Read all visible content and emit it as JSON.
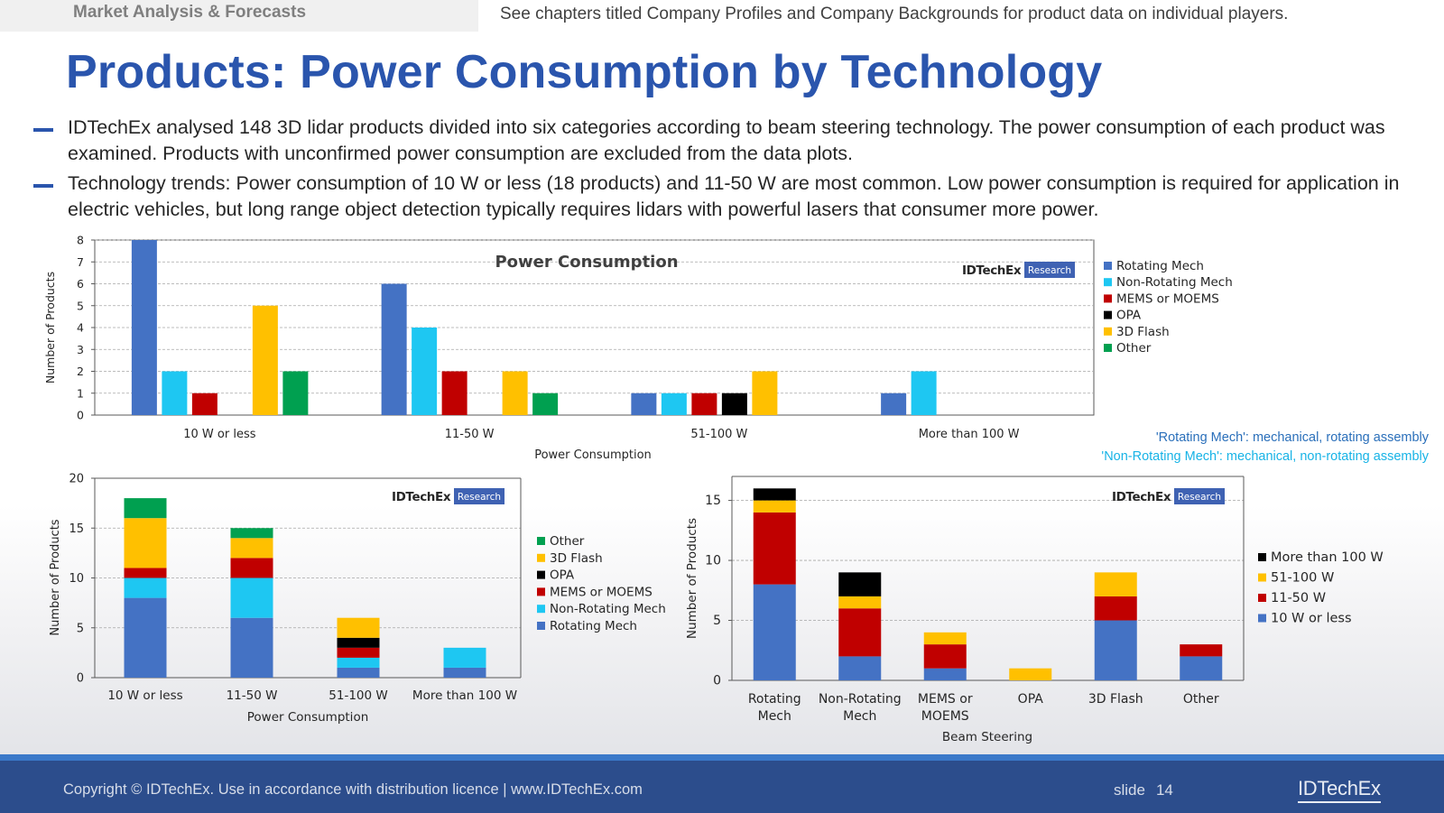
{
  "header": {
    "section": "Market Analysis & Forecasts",
    "note": "See chapters titled Company Profiles and Company Backgrounds for product data on individual players."
  },
  "title": "Products: Power Consumption by Technology",
  "bullets": [
    "IDTechEx analysed 148 3D lidar products divided into six categories according to beam steering technology. The power consumption of each product was examined. Products with unconfirmed power consumption are excluded from the data plots.",
    "Technology trends: Power consumption of 10 W or less (18 products) and 11-50 W are most common. Low power consumption is required for application in electric vehicles, but long range object detection typically requires lidars with powerful lasers that consumer more power."
  ],
  "notes": [
    "'Rotating Mech': mechanical, rotating assembly",
    "'Non-Rotating Mech': mechanical, non-rotating assembly"
  ],
  "logo": {
    "brand": "IDTechEx",
    "badge": "Research"
  },
  "colors": {
    "rotating": "#4472c4",
    "non_rotating": "#1ec7f2",
    "mems": "#c00000",
    "opa": "#000000",
    "flash": "#ffc000",
    "other": "#00a050",
    "title_blue": "#2a55ad",
    "footer": "#2c4d8c"
  },
  "footer": {
    "copyright": "Copyright © IDTechEx. Use in accordance with distribution licence  |  www.IDTechEx.com",
    "slide_label": "slide",
    "slide_number": "14",
    "logo": "IDTechEx"
  },
  "chart_data": [
    {
      "type": "bar",
      "title": "Power Consumption",
      "xlabel": "Power Consumption",
      "ylabel": "Number of Products",
      "ylim": [
        0,
        8
      ],
      "yticks": [
        0,
        1,
        2,
        3,
        4,
        5,
        6,
        7,
        8
      ],
      "grid": true,
      "legend": "right",
      "categories": [
        "10 W or less",
        "11-50 W",
        "51-100 W",
        "More than 100 W"
      ],
      "series": [
        {
          "name": "Rotating Mech",
          "color": "#4472c4",
          "values": [
            8,
            6,
            1,
            1
          ]
        },
        {
          "name": "Non-Rotating Mech",
          "color": "#1ec7f2",
          "values": [
            2,
            4,
            1,
            2
          ]
        },
        {
          "name": "MEMS or MOEMS",
          "color": "#c00000",
          "values": [
            1,
            2,
            1,
            0
          ]
        },
        {
          "name": "OPA",
          "color": "#000000",
          "values": [
            0,
            0,
            1,
            0
          ]
        },
        {
          "name": "3D Flash",
          "color": "#ffc000",
          "values": [
            5,
            2,
            2,
            0
          ]
        },
        {
          "name": "Other",
          "color": "#00a050",
          "values": [
            2,
            1,
            0,
            0
          ]
        }
      ]
    },
    {
      "type": "bar",
      "stacked": true,
      "title": "",
      "xlabel": "Power Consumption",
      "ylabel": "Number of Products",
      "ylim": [
        0,
        20
      ],
      "yticks": [
        0,
        5,
        10,
        15,
        20
      ],
      "grid": true,
      "legend": "right",
      "categories": [
        "10 W or less",
        "11-50 W",
        "51-100 W",
        "More than 100 W"
      ],
      "series": [
        {
          "name": "Rotating Mech",
          "color": "#4472c4",
          "values": [
            8,
            6,
            1,
            1
          ]
        },
        {
          "name": "Non-Rotating Mech",
          "color": "#1ec7f2",
          "values": [
            2,
            4,
            1,
            2
          ]
        },
        {
          "name": "MEMS or MOEMS",
          "color": "#c00000",
          "values": [
            1,
            2,
            1,
            0
          ]
        },
        {
          "name": "OPA",
          "color": "#000000",
          "values": [
            0,
            0,
            1,
            0
          ]
        },
        {
          "name": "3D Flash",
          "color": "#ffc000",
          "values": [
            5,
            2,
            2,
            0
          ]
        },
        {
          "name": "Other",
          "color": "#00a050",
          "values": [
            2,
            1,
            0,
            0
          ]
        }
      ]
    },
    {
      "type": "bar",
      "stacked": true,
      "title": "",
      "xlabel": "Beam Steering",
      "ylabel": "Number of Products",
      "ylim": [
        0,
        17
      ],
      "yticks": [
        0,
        5,
        10,
        15
      ],
      "grid": true,
      "legend": "right",
      "categories": [
        [
          "Rotating",
          "Mech"
        ],
        [
          "Non-Rotating",
          "Mech"
        ],
        [
          "MEMS or",
          "MOEMS"
        ],
        [
          "OPA"
        ],
        [
          "3D Flash"
        ],
        [
          "Other"
        ]
      ],
      "series": [
        {
          "name": "10 W or less",
          "color": "#4472c4",
          "values": [
            8,
            2,
            1,
            0,
            5,
            2
          ]
        },
        {
          "name": "11-50 W",
          "color": "#c00000",
          "values": [
            6,
            4,
            2,
            0,
            2,
            1
          ]
        },
        {
          "name": "51-100 W",
          "color": "#ffc000",
          "values": [
            1,
            1,
            1,
            1,
            2,
            0
          ]
        },
        {
          "name": "More than 100 W",
          "color": "#000000",
          "values": [
            1,
            2,
            0,
            0,
            0,
            0
          ]
        }
      ]
    }
  ]
}
